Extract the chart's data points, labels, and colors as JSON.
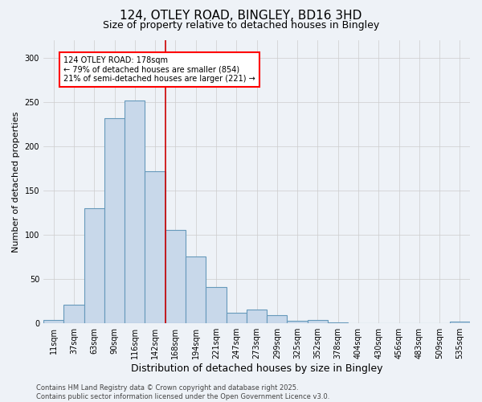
{
  "title": "124, OTLEY ROAD, BINGLEY, BD16 3HD",
  "subtitle": "Size of property relative to detached houses in Bingley",
  "xlabel": "Distribution of detached houses by size in Bingley",
  "ylabel": "Number of detached properties",
  "bar_color": "#c8d8ea",
  "bar_edge_color": "#6699bb",
  "background_color": "#eef2f7",
  "categories": [
    "11sqm",
    "37sqm",
    "63sqm",
    "90sqm",
    "116sqm",
    "142sqm",
    "168sqm",
    "194sqm",
    "221sqm",
    "247sqm",
    "273sqm",
    "299sqm",
    "325sqm",
    "352sqm",
    "378sqm",
    "404sqm",
    "430sqm",
    "456sqm",
    "483sqm",
    "509sqm",
    "535sqm"
  ],
  "values": [
    4,
    21,
    130,
    232,
    252,
    172,
    106,
    76,
    41,
    12,
    16,
    9,
    3,
    4,
    1,
    0,
    0,
    0,
    0,
    0,
    2
  ],
  "ylim": [
    0,
    320
  ],
  "yticks": [
    0,
    50,
    100,
    150,
    200,
    250,
    300
  ],
  "annotation_text": "124 OTLEY ROAD: 178sqm\n← 79% of detached houses are smaller (854)\n21% of semi-detached houses are larger (221) →",
  "vline_index": 6,
  "footer_line1": "Contains HM Land Registry data © Crown copyright and database right 2025.",
  "footer_line2": "Contains public sector information licensed under the Open Government Licence v3.0.",
  "grid_color": "#cccccc",
  "title_fontsize": 11,
  "subtitle_fontsize": 9,
  "axis_label_fontsize": 8,
  "tick_fontsize": 7,
  "annotation_fontsize": 7,
  "footer_fontsize": 6
}
